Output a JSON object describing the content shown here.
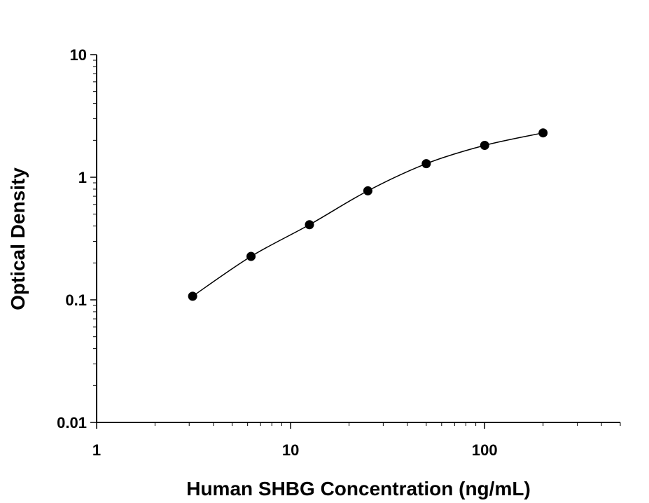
{
  "chart_data": {
    "type": "scatter",
    "title": "",
    "xlabel": "Human SHBG Concentration (ng/mL)",
    "ylabel": "Optical Density",
    "x_scale": "log",
    "y_scale": "log",
    "xlim": [
      1,
      500
    ],
    "ylim": [
      0.01,
      10
    ],
    "x_ticks": [
      "1",
      "10",
      "100"
    ],
    "y_ticks": [
      "0.01",
      "0.1",
      "1",
      "10"
    ],
    "grid": false,
    "legend": "none",
    "series": [
      {
        "x": [
          3.125,
          6.25,
          12.5,
          25,
          50,
          100,
          200
        ],
        "y": [
          0.107,
          0.226,
          0.41,
          0.775,
          1.29,
          1.82,
          2.3
        ],
        "marker": "filled-circle",
        "fit_line": "smooth curve",
        "color": "#000000"
      }
    ]
  }
}
